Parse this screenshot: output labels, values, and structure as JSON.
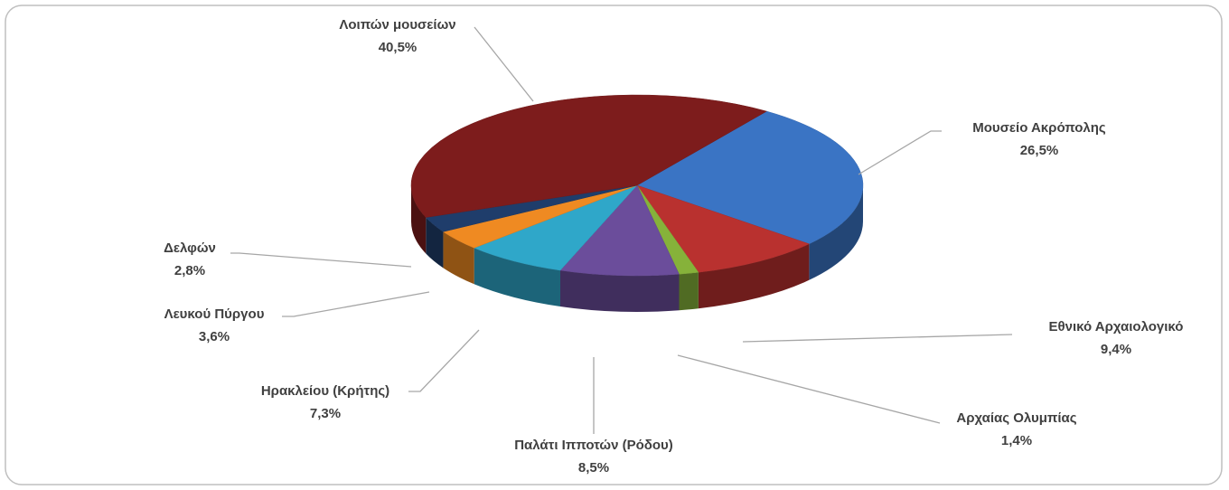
{
  "chart_data": {
    "type": "pie",
    "categories": [
      "Μουσείο Ακρόπολης",
      "Εθνικό Αρχαιολογικό",
      "Αρχαίας Ολυμπίας",
      "Παλάτι Ιπποτών (Ρόδου)",
      "Ηρακλείου (Κρήτης)",
      "Λευκού Πύργου",
      "Δελφών",
      "Λοιπών μουσείων"
    ],
    "values": [
      26.5,
      9.4,
      1.4,
      8.5,
      7.3,
      3.6,
      2.8,
      40.5
    ],
    "value_labels": [
      "26,5%",
      "9,4%",
      "1,4%",
      "8,5%",
      "7,3%",
      "3,6%",
      "2,8%",
      "40,5%"
    ],
    "colors": [
      "#3a74c4",
      "#b9312f",
      "#86b23a",
      "#6b4d9b",
      "#2fa7c9",
      "#ef8a22",
      "#1f3d6b",
      "#7d1c1c"
    ]
  }
}
